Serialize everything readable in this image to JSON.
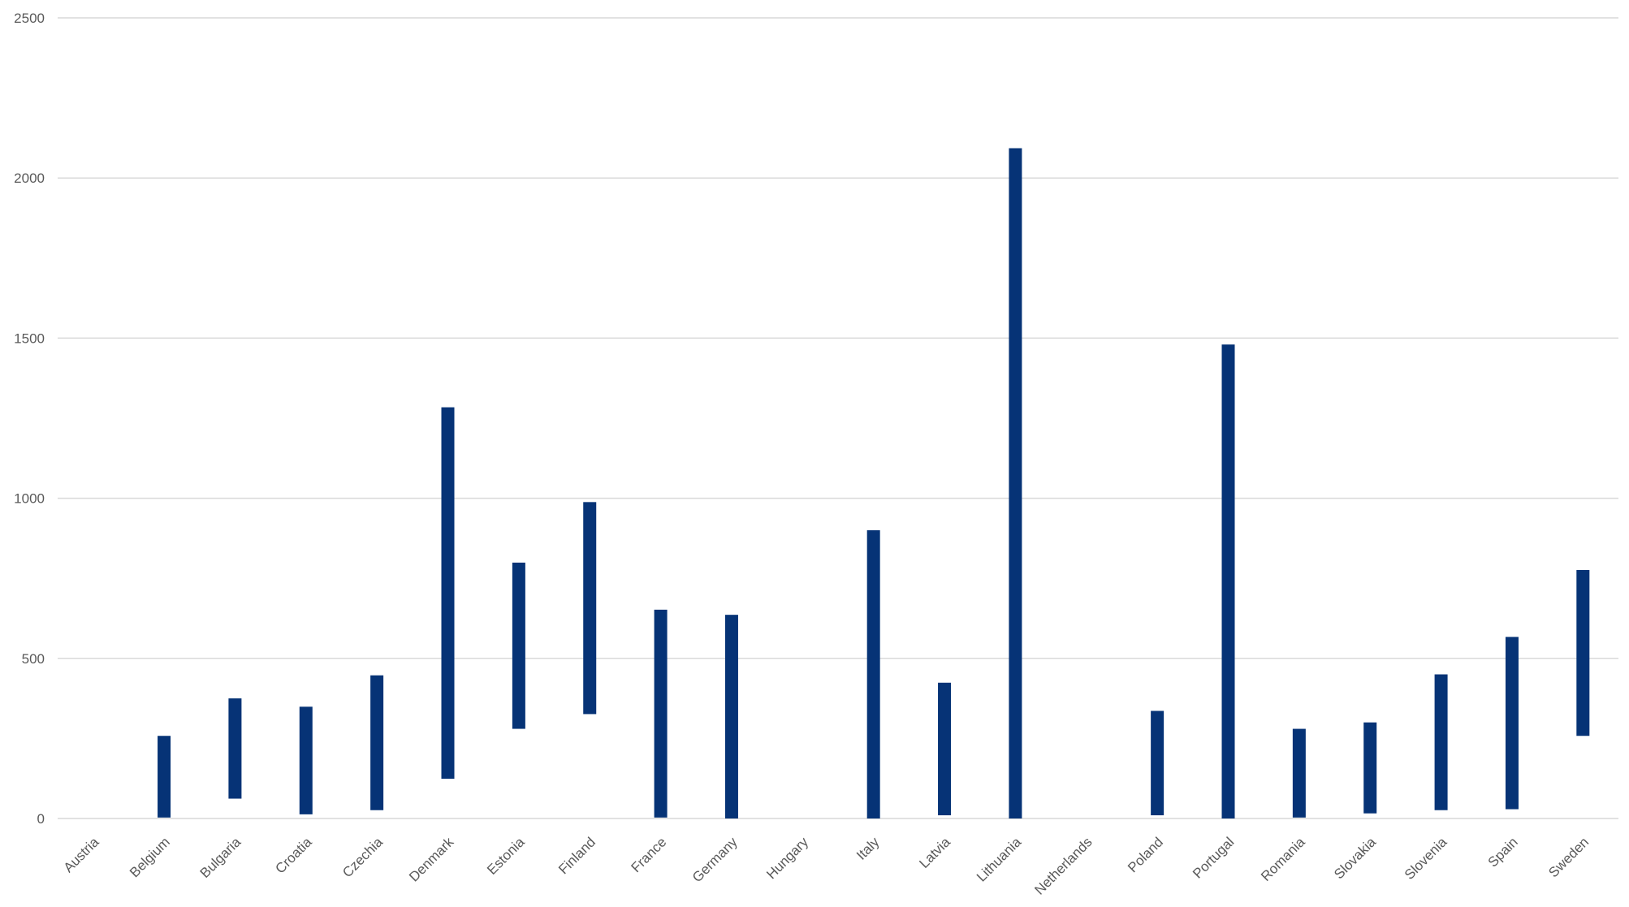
{
  "chart_data": {
    "type": "bar",
    "subtype": "floating-range",
    "title": "",
    "xlabel": "",
    "ylabel": "",
    "ylim": [
      0,
      2500
    ],
    "yticks": [
      0,
      500,
      1000,
      1500,
      2000,
      2500
    ],
    "grid": true,
    "legend": "none",
    "bar_color": "#063376",
    "categories": [
      "Austria",
      "Belgium",
      "Bulgaria",
      "Croatia",
      "Czechia",
      "Denmark",
      "Estonia",
      "Finland",
      "France",
      "Germany",
      "Hungary",
      "Italy",
      "Latvia",
      "Lithuania",
      "Netherlands",
      "Poland",
      "Portugal",
      "Romania",
      "Slovakia",
      "Slovenia",
      "Spain",
      "Sweden"
    ],
    "low": [
      null,
      3,
      62,
      13,
      26,
      124,
      280,
      326,
      3,
      0,
      null,
      0,
      10,
      0,
      null,
      10,
      0,
      3,
      16,
      26,
      29,
      258
    ],
    "high": [
      null,
      258,
      375,
      349,
      447,
      1284,
      799,
      988,
      652,
      636,
      null,
      900,
      424,
      2093,
      null,
      336,
      1480,
      280,
      300,
      450,
      567,
      776
    ]
  }
}
